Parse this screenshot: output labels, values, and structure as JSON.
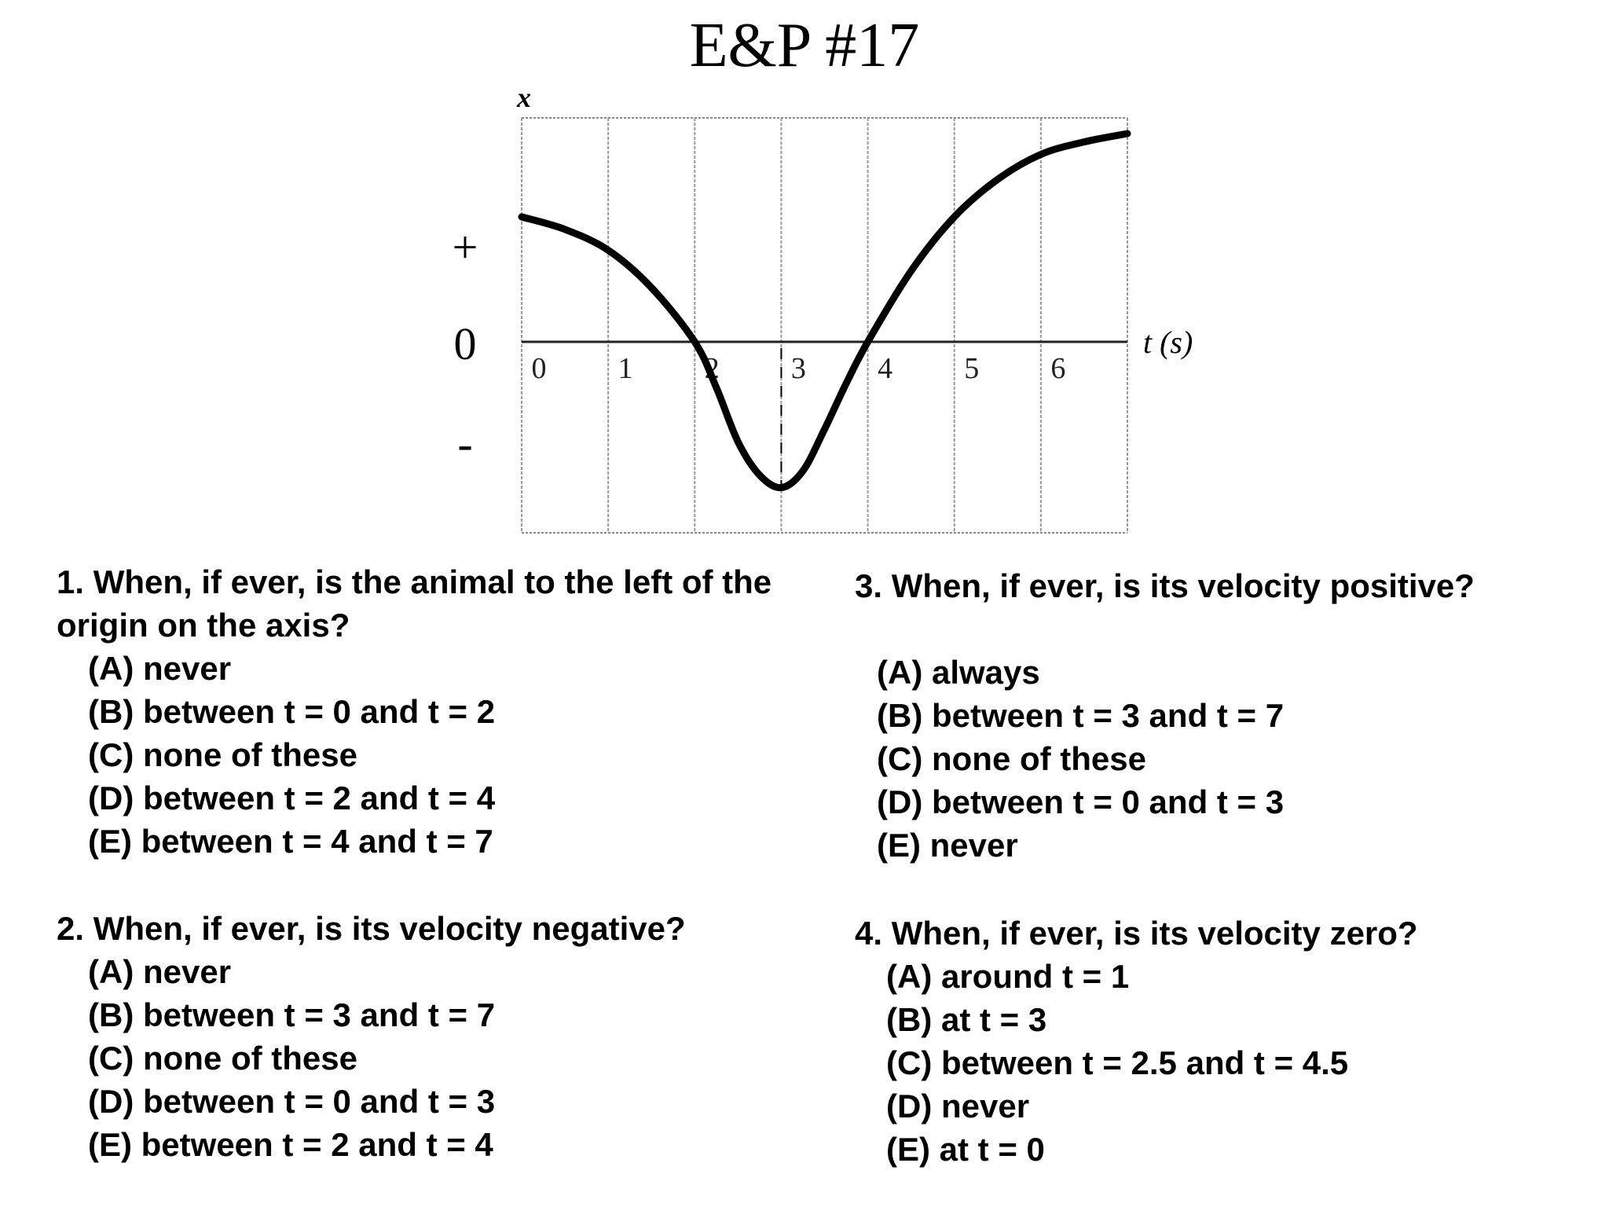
{
  "page": {
    "title": "E&P #17"
  },
  "chart_data": {
    "type": "line",
    "ylabel": "x",
    "xlabel": "t (s)",
    "x_ticks": [
      "0",
      "1",
      "2",
      "3",
      "4",
      "5",
      "6"
    ],
    "y_side_labels": {
      "plus": "+",
      "zero": "0",
      "minus": "-"
    },
    "xlim": [
      0,
      7
    ],
    "ylim": [
      -2.2,
      2.65
    ],
    "grid": true,
    "series": [
      {
        "x": [
          0,
          0.5,
          1,
          1.5,
          2,
          2.25,
          2.5,
          2.75,
          3,
          3.25,
          3.5,
          3.75,
          4,
          4.5,
          5,
          5.5,
          6,
          6.5,
          7
        ],
        "y": [
          1.5,
          1.35,
          1.1,
          0.65,
          0.0,
          -0.55,
          -1.2,
          -1.6,
          -1.75,
          -1.55,
          -1.05,
          -0.5,
          0.0,
          0.85,
          1.5,
          1.95,
          2.25,
          2.4,
          2.5
        ]
      }
    ]
  },
  "questions": [
    {
      "text": "1. When, if ever, is the animal to the left of the origin on the axis?",
      "options": [
        "(A) never",
        "(B) between t = 0 and t = 2",
        "(C) none of these",
        "(D) between t = 2 and t = 4",
        "(E) between t = 4 and t = 7"
      ]
    },
    {
      "text": "2. When, if ever, is its velocity negative?",
      "options": [
        "(A) never",
        "(B) between t = 3 and t = 7",
        "(C) none of these",
        "(D) between t = 0 and t = 3",
        "(E) between t = 2 and t = 4"
      ]
    },
    {
      "text": "3. When, if ever, is its velocity positive?",
      "options": [
        "(A) always",
        "(B) between t = 3 and t = 7",
        "(C) none of these",
        "(D) between t = 0 and t = 3",
        "(E) never"
      ]
    },
    {
      "text": "4. When, if ever, is its velocity zero?",
      "options": [
        "(A) around t = 1",
        "(B) at t = 3",
        "(C) between t = 2.5 and t = 4.5",
        "(D) never",
        "(E) at t = 0"
      ]
    }
  ]
}
